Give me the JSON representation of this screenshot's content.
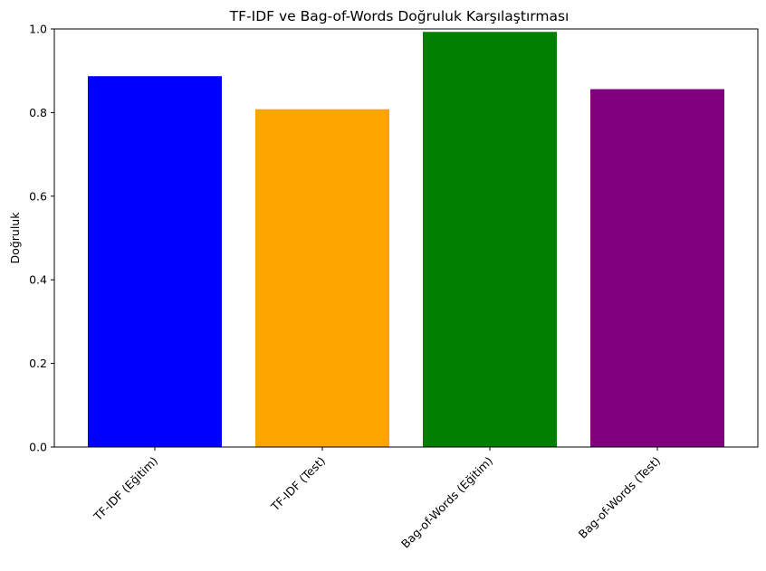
{
  "chart_data": {
    "type": "bar",
    "title": "TF-IDF ve Bag-of-Words Doğruluk Karşılaştırması",
    "xlabel": "",
    "ylabel": "Doğruluk",
    "categories": [
      "TF-IDF (Eğitim)",
      "TF-IDF (Test)",
      "Bag-of-Words (Eğitim)",
      "Bag-of-Words (Test)"
    ],
    "values": [
      0.887,
      0.808,
      0.993,
      0.856
    ],
    "colors": [
      "#0000ff",
      "#ffa500",
      "#008000",
      "#800080"
    ],
    "ylim": [
      0,
      1.0
    ],
    "yticks": [
      "0.0",
      "0.2",
      "0.4",
      "0.6",
      "0.8",
      "1.0"
    ],
    "grid": false,
    "legend": "none"
  }
}
